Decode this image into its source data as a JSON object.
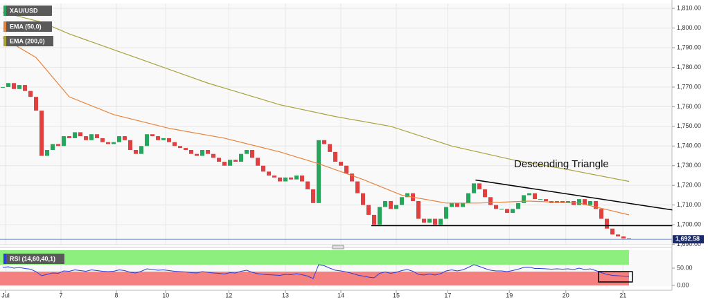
{
  "chart_data": [
    {
      "type": "candlestick",
      "symbol": "XAU/USD",
      "close": [
        1770,
        1772,
        1769,
        1771,
        1768,
        1765,
        1758,
        1735,
        1738,
        1741,
        1740,
        1745,
        1744,
        1747,
        1745,
        1743,
        1746,
        1744,
        1742,
        1741,
        1742,
        1745,
        1743,
        1738,
        1736,
        1740,
        1746,
        1745,
        1743,
        1744,
        1742,
        1740,
        1739,
        1738,
        1736,
        1735,
        1738,
        1736,
        1734,
        1732,
        1730,
        1733,
        1732,
        1736,
        1738,
        1734,
        1730,
        1727,
        1725,
        1724,
        1722,
        1724,
        1723,
        1725,
        1722,
        1718,
        1711,
        1743,
        1741,
        1737,
        1732,
        1730,
        1726,
        1722,
        1716,
        1710,
        1705,
        1700,
        1709,
        1712,
        1708,
        1710,
        1714,
        1716,
        1712,
        1703,
        1701,
        1703,
        1700,
        1703,
        1709,
        1711,
        1709,
        1711,
        1716,
        1721,
        1718,
        1714,
        1710,
        1708,
        1708,
        1706,
        1708,
        1711,
        1715,
        1716,
        1713,
        1713,
        1712,
        1711,
        1712,
        1711,
        1712,
        1710,
        1713,
        1710,
        1712,
        1708,
        1703,
        1698,
        1695,
        1694,
        1693,
        1692.58
      ],
      "up_color": "#26a65b",
      "down_color": "#e04040",
      "series": [
        {
          "name": "EMA (50,0)",
          "color": "#e8823a",
          "x": [
            0,
            6,
            12,
            20,
            30,
            40,
            50,
            57,
            65,
            72,
            80,
            86,
            95,
            104,
            113
          ],
          "values": [
            1795,
            1785,
            1765,
            1756,
            1749,
            1744,
            1737,
            1731,
            1723,
            1715,
            1711,
            1711,
            1712,
            1711,
            1705
          ]
        },
        {
          "name": "EMA (200,0)",
          "color": "#a8a23a",
          "x": [
            0,
            7,
            12,
            25,
            37,
            50,
            60,
            70,
            81,
            92,
            102,
            113
          ],
          "values": [
            1808,
            1803,
            1797,
            1784,
            1772,
            1761,
            1755,
            1750,
            1740,
            1733,
            1728,
            1722
          ]
        }
      ],
      "last_price": 1692.58,
      "last_price_label": "1,692.58",
      "annotations": [
        {
          "x": [
            85.3,
            120.8
          ],
          "y": [
            1722.7,
            1707.5
          ]
        },
        {
          "x": [
            66.5,
            120.8
          ],
          "y": [
            1699.5,
            1699.5
          ]
        }
      ],
      "annotation_text": "Descending Triangle",
      "ylim": [
        1689.5,
        1812.5
      ],
      "yticks": [
        {
          "value": 1690,
          "label": "1,690.00"
        },
        {
          "value": 1700,
          "label": "1,700.00"
        },
        {
          "value": 1710,
          "label": "1,710.00"
        },
        {
          "value": 1720,
          "label": "1,720.00"
        },
        {
          "value": 1730,
          "label": "1,730.00"
        },
        {
          "value": 1740,
          "label": "1,740.00"
        },
        {
          "value": 1750,
          "label": "1,750.00"
        },
        {
          "value": 1760,
          "label": "1,760.00"
        },
        {
          "value": 1770,
          "label": "1,770.00"
        },
        {
          "value": 1780,
          "label": "1,780.00"
        },
        {
          "value": 1790,
          "label": "1,790.00"
        },
        {
          "value": 1800,
          "label": "1,800.00"
        },
        {
          "value": 1810,
          "label": "1,810.00"
        }
      ],
      "xticks": [
        {
          "value": 0.5,
          "label": "Jul"
        },
        {
          "value": 10.5,
          "label": "7"
        },
        {
          "value": 20.5,
          "label": "8"
        },
        {
          "value": 29.4,
          "label": "10"
        },
        {
          "value": 40.8,
          "label": "12"
        },
        {
          "value": 51,
          "label": "13"
        },
        {
          "value": 61,
          "label": "14"
        },
        {
          "value": 71,
          "label": "15"
        },
        {
          "value": 80.3,
          "label": "17"
        },
        {
          "value": 91.4,
          "label": "19"
        },
        {
          "value": 101.6,
          "label": "20"
        },
        {
          "value": 111.9,
          "label": "21"
        }
      ],
      "grid": true
    },
    {
      "type": "line",
      "title": "RSI (14,60,40,1)",
      "color": "#2a3fd8",
      "values": [
        52,
        54,
        50,
        52,
        49,
        47,
        40,
        28,
        32,
        36,
        35,
        42,
        41,
        45,
        43,
        41,
        45,
        43,
        41,
        40,
        41,
        45,
        43,
        38,
        36,
        41,
        48,
        46,
        44,
        45,
        43,
        41,
        40,
        39,
        37,
        36,
        40,
        38,
        36,
        35,
        33,
        37,
        36,
        41,
        44,
        38,
        34,
        32,
        31,
        30,
        29,
        32,
        31,
        34,
        31,
        27,
        20,
        60,
        57,
        50,
        44,
        42,
        39,
        35,
        30,
        27,
        24,
        22,
        35,
        39,
        35,
        38,
        43,
        46,
        41,
        32,
        30,
        33,
        30,
        34,
        42,
        45,
        42,
        45,
        52,
        60,
        55,
        49,
        44,
        42,
        42,
        40,
        43,
        47,
        52,
        53,
        49,
        49,
        48,
        47,
        48,
        47,
        48,
        46,
        50,
        46,
        48,
        43,
        37,
        32,
        29,
        28,
        27,
        26
      ],
      "bands": [
        {
          "from": 60,
          "to": 102,
          "color": "#8df07e"
        },
        {
          "from": 0,
          "to": 40,
          "color": "#f58080"
        }
      ],
      "highlight": {
        "x": [
          107.5,
          113.6
        ],
        "y": [
          40,
          10
        ]
      },
      "ylim": [
        0,
        102
      ],
      "yticks": [
        {
          "value": 0,
          "label": "0.00"
        },
        {
          "value": 50,
          "label": "50.00"
        }
      ]
    }
  ]
}
